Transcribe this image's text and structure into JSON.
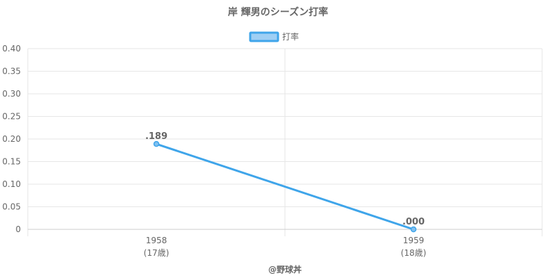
{
  "title": "岸 輝男のシーズン打率",
  "credit": "@野球丼",
  "colors": {
    "line": "#3fa5ea",
    "point_fill": "#80c0f0",
    "legend_fill": "#9fcff4",
    "grid": "#e6e6e6",
    "axis": "#cccccc",
    "text": "#666666"
  },
  "chart_data": {
    "type": "line",
    "title": "岸 輝男のシーズン打率",
    "categories": [
      "1958",
      "1959"
    ],
    "category_sublabels": [
      "(17歳)",
      "(18歳)"
    ],
    "series": [
      {
        "name": "打率",
        "values": [
          0.189,
          0.0
        ],
        "data_labels": [
          ".189",
          ".000"
        ]
      }
    ],
    "ylim": [
      0,
      0.4
    ],
    "y_ticks": [
      0,
      0.05,
      0.1,
      0.15,
      0.2,
      0.25,
      0.3,
      0.35,
      0.4
    ],
    "y_tick_labels": [
      "0",
      "0.05",
      "0.10",
      "0.15",
      "0.20",
      "0.25",
      "0.30",
      "0.35",
      "0.40"
    ],
    "grid": true,
    "legend_position": "top-center"
  }
}
